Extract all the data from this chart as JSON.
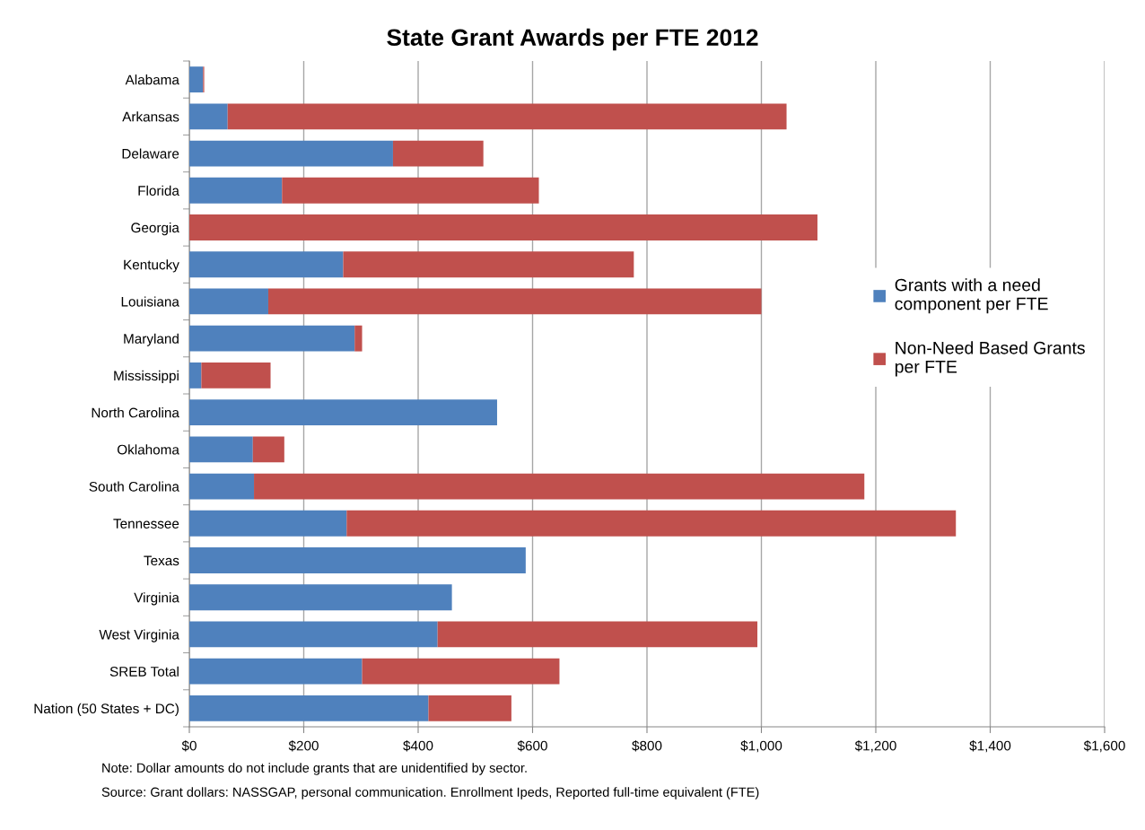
{
  "chart_data": {
    "type": "bar",
    "orientation": "horizontal",
    "stacked": true,
    "title": "State Grant Awards per FTE 2012",
    "categories": [
      "Alabama",
      "Arkansas",
      "Delaware",
      "Florida",
      "Georgia",
      "Kentucky",
      "Louisiana",
      "Maryland",
      "Mississippi",
      "North Carolina",
      "Oklahoma",
      "South Carolina",
      "Tennessee",
      "Texas",
      "Virginia",
      "West Virginia",
      "SREB Total",
      "Nation (50 States + DC)"
    ],
    "series": [
      {
        "name": "Grants with a need component per FTE",
        "color": "#4f81bd",
        "values": [
          24,
          67,
          356,
          162,
          0,
          269,
          138,
          289,
          21,
          538,
          111,
          113,
          275,
          588,
          459,
          434,
          302,
          418
        ]
      },
      {
        "name": "Non-Need Based Grants per FTE",
        "color": "#c0504d",
        "values": [
          2,
          977,
          158,
          449,
          1098,
          508,
          862,
          13,
          121,
          0,
          55,
          1067,
          1065,
          0,
          0,
          559,
          345,
          145
        ]
      }
    ],
    "xlim": [
      0,
      1600
    ],
    "xticks": [
      {
        "value": 0,
        "label": "$0"
      },
      {
        "value": 200,
        "label": "$200"
      },
      {
        "value": 400,
        "label": "$400"
      },
      {
        "value": 600,
        "label": "$600"
      },
      {
        "value": 800,
        "label": "$800"
      },
      {
        "value": 1000,
        "label": "$1,000"
      },
      {
        "value": 1200,
        "label": "$1,200"
      },
      {
        "value": 1400,
        "label": "$1,400"
      },
      {
        "value": 1600,
        "label": "$1,600"
      }
    ],
    "grid": "x",
    "legend": "right",
    "annotations": [
      "Note: Dollar amounts do not include grants that are unidentified by sector.",
      "Source: Grant dollars: NASSGAP, personal communication. Enrollment Ipeds, Reported full-time equivalent (FTE)"
    ]
  }
}
